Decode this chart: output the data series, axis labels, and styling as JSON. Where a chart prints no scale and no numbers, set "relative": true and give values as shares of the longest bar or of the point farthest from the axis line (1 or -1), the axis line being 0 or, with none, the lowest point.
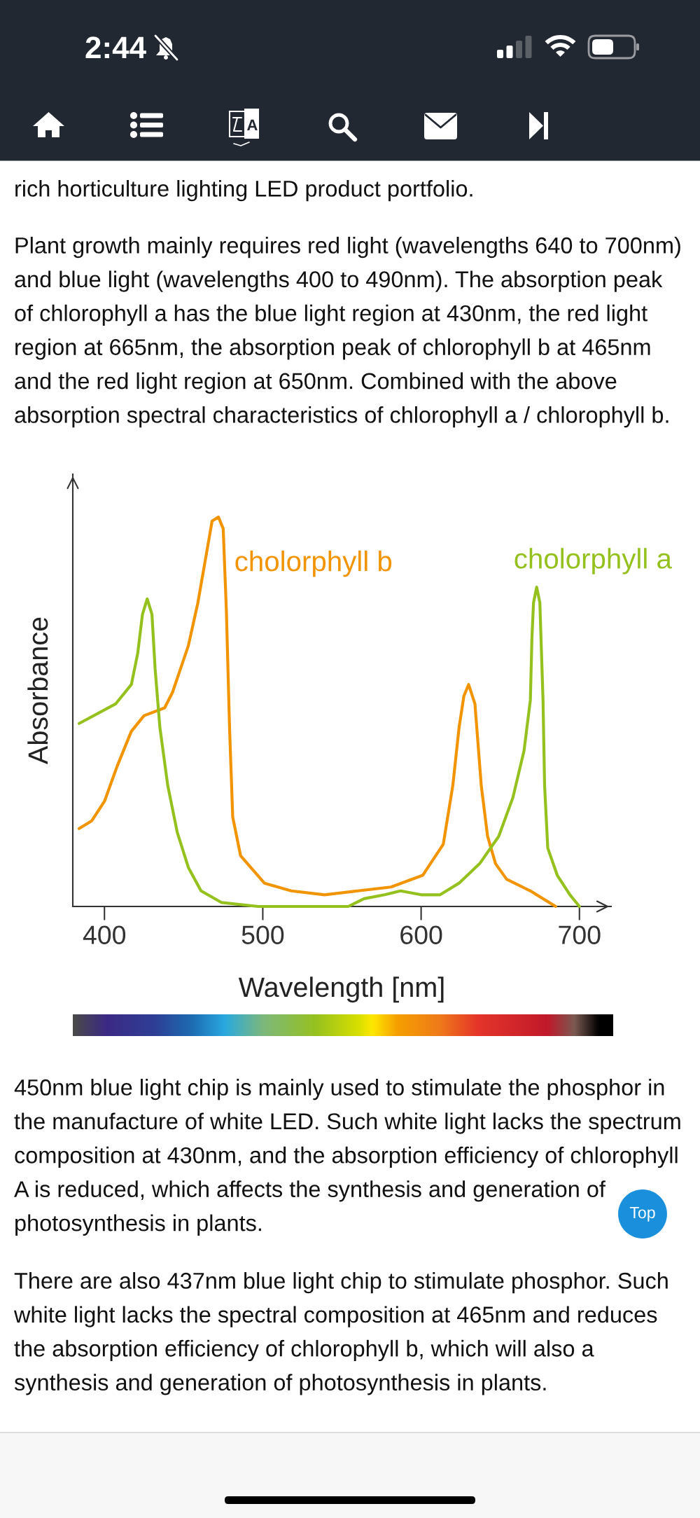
{
  "chart_data": {
    "type": "line",
    "relative": true,
    "xlabel": "Wavelength [nm]",
    "ylabel": "Absorbance",
    "xlim": [
      380,
      720
    ],
    "xticks": [
      400,
      500,
      600,
      700
    ],
    "grid": false,
    "line_style": "solid",
    "series": [
      {
        "name": "cholorphyll b",
        "color": "#f29400",
        "x": [
          384,
          392,
          400,
          408,
          417,
          425,
          438,
          443,
          453,
          459,
          465,
          468,
          472,
          475,
          477,
          479,
          481,
          486,
          501,
          518,
          539,
          560,
          581,
          601,
          614,
          620,
          624,
          627,
          630,
          634,
          638,
          642,
          647,
          654,
          669,
          685
        ],
        "values": [
          0.2,
          0.22,
          0.27,
          0.36,
          0.45,
          0.49,
          0.51,
          0.55,
          0.67,
          0.78,
          0.92,
          0.99,
          1.0,
          0.97,
          0.76,
          0.46,
          0.23,
          0.13,
          0.06,
          0.04,
          0.03,
          0.04,
          0.05,
          0.08,
          0.16,
          0.31,
          0.46,
          0.54,
          0.57,
          0.52,
          0.31,
          0.18,
          0.11,
          0.07,
          0.04,
          0.0
        ]
      },
      {
        "name": "cholorphyll a",
        "color": "#95c11f",
        "x": [
          384,
          407,
          417,
          421,
          424,
          427,
          430,
          432,
          435,
          440,
          446,
          453,
          461,
          474,
          497,
          554,
          564,
          577,
          587,
          600,
          608,
          612,
          624,
          637,
          649,
          658,
          665,
          669,
          670,
          671,
          673,
          675,
          677,
          678,
          680,
          686,
          694,
          700
        ],
        "values": [
          0.47,
          0.52,
          0.57,
          0.65,
          0.75,
          0.79,
          0.75,
          0.61,
          0.46,
          0.31,
          0.19,
          0.1,
          0.04,
          0.01,
          0.0,
          0.0,
          0.02,
          0.03,
          0.04,
          0.03,
          0.03,
          0.03,
          0.06,
          0.11,
          0.18,
          0.28,
          0.4,
          0.53,
          0.69,
          0.78,
          0.82,
          0.78,
          0.53,
          0.31,
          0.15,
          0.08,
          0.03,
          0.0
        ]
      }
    ],
    "annotations": [
      "rich horticulture lighting LED product portfolio.",
      "Plant growth mainly requires red light (wavelengths 640 to 700nm)\nand blue light (wavelengths 400 to 490nm). The absorption peak\nof chlorophyll a has the blue light region at 430nm, the red light\nregion at 665nm, the absorption peak of chlorophyll b at 465nm\nand the red light region at 650nm. Combined with the above\nabsorption spectral characteristics of chlorophyll a / chlorophyll b.",
      "450nm blue light chip is mainly used to stimulate the phosphor in\nthe manufacture of white LED. Such white light lacks the spectrum\ncomposition at 430nm, and the absorption efficiency of chlorophyll",
      "A is reduced, which affects the synthesis and generation of\nphotosynthesis in plants.",
      "There are also 437nm blue light chip to stimulate phosphor. Such\nwhite light lacks the spectral composition at 465nm and reduces\nthe absorption efficiency of chlorophyll b, which will also a\nsynthesis and generation of photosynthesis in plants.",
      "2:44",
      "Top"
    ]
  }
}
